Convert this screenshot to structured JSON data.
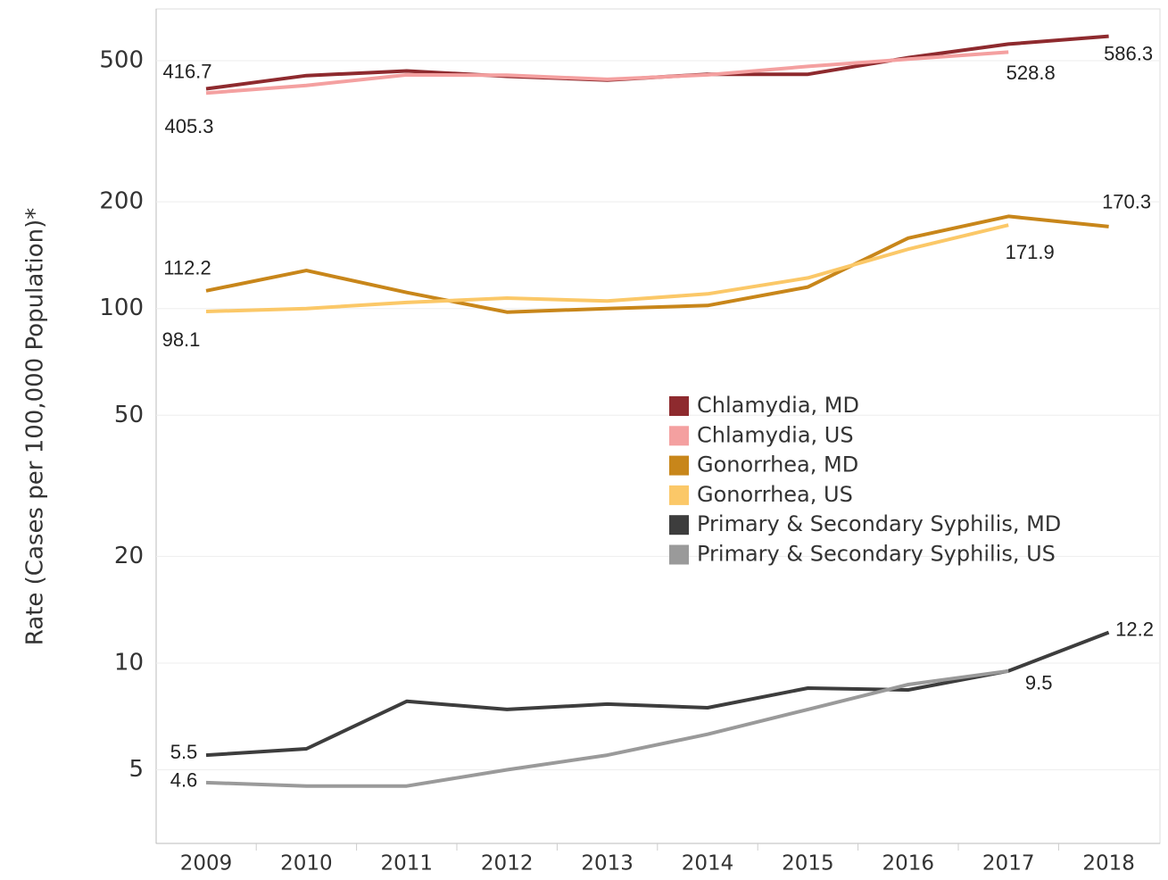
{
  "chart_data": {
    "type": "line",
    "y_label": "Rate (Cases per 100,000 Population)*",
    "categories": [
      "2009",
      "2010",
      "2011",
      "2012",
      "2013",
      "2014",
      "2015",
      "2016",
      "2017",
      "2018"
    ],
    "log_scale": true,
    "ylim": [
      3.1,
      700
    ],
    "yticks": [
      5,
      10,
      20,
      50,
      100,
      200,
      500
    ],
    "grid": true,
    "legend": "center-right",
    "series": [
      {
        "name": "Chlamydia, MD",
        "color": "#8e2a2e",
        "values": [
          416.7,
          454,
          468,
          452,
          441,
          458,
          458,
          510,
          557,
          586.3
        ],
        "value_labels": [
          "416.7",
          null,
          null,
          null,
          null,
          null,
          null,
          null,
          null,
          "586.3"
        ]
      },
      {
        "name": "Chlamydia, US",
        "color": "#f4a0a0",
        "values": [
          405.3,
          426,
          456,
          455,
          443,
          456,
          482,
          505,
          528.8,
          null
        ],
        "value_labels": [
          "405.3",
          null,
          null,
          null,
          null,
          null,
          null,
          null,
          "528.8",
          null
        ]
      },
      {
        "name": "Gonorrhea, MD",
        "color": "#c8861a",
        "values": [
          112.2,
          128,
          111,
          97.7,
          100,
          102,
          115,
          158,
          182,
          170.3
        ],
        "value_labels": [
          "112.2",
          null,
          null,
          null,
          null,
          null,
          null,
          null,
          null,
          "170.3"
        ]
      },
      {
        "name": "Gonorrhea, US",
        "color": "#fbc868",
        "values": [
          98.1,
          100,
          104,
          107,
          105,
          110,
          122,
          147,
          171.9,
          null
        ],
        "value_labels": [
          "98.1",
          null,
          null,
          null,
          null,
          null,
          null,
          null,
          "171.9",
          null
        ]
      },
      {
        "name": "Primary & Secondary Syphilis, MD",
        "color": "#3d3d3d",
        "values": [
          5.5,
          5.73,
          7.8,
          7.4,
          7.66,
          7.48,
          8.5,
          8.4,
          9.5,
          12.2
        ],
        "value_labels": [
          "5.5",
          null,
          null,
          null,
          null,
          null,
          null,
          null,
          null,
          "12.2"
        ]
      },
      {
        "name": "Primary & Secondary Syphilis, US",
        "color": "#9a9a9a",
        "values": [
          4.6,
          4.5,
          4.5,
          5.0,
          5.5,
          6.3,
          7.4,
          8.7,
          9.5,
          null
        ],
        "value_labels": [
          "4.6",
          null,
          null,
          null,
          null,
          null,
          null,
          null,
          "9.5",
          null
        ]
      }
    ]
  }
}
